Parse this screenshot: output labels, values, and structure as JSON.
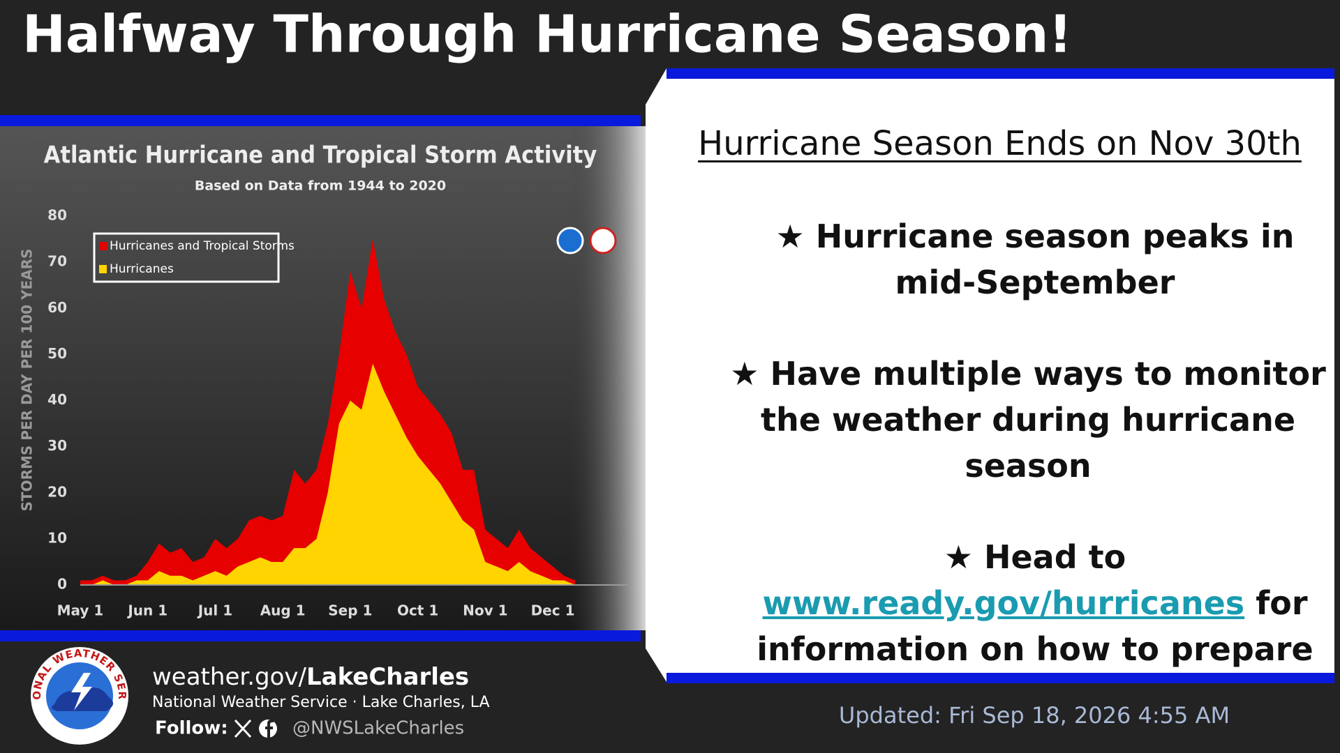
{
  "header": {
    "title": "Halfway Through Hurricane Season!"
  },
  "chart_data": {
    "type": "area",
    "title": "Atlantic Hurricane and Tropical Storm Activity",
    "subtitle": "Based on Data from 1944 to 2020",
    "y_label": "STORMS PER DAY PER 100 YEARS",
    "categories": [
      "May 1",
      null,
      null,
      null,
      null,
      null,
      "Jun 1",
      null,
      null,
      null,
      null,
      null,
      "Jul 1",
      null,
      null,
      null,
      null,
      null,
      "Aug 1",
      null,
      null,
      null,
      null,
      null,
      "Sep 1",
      null,
      null,
      null,
      null,
      null,
      "Oct 1",
      null,
      null,
      null,
      null,
      null,
      "Nov 1",
      null,
      null,
      null,
      null,
      null,
      "Dec 1",
      null,
      null
    ],
    "series": [
      {
        "name": "Hurricanes and Tropical Storms",
        "color": "#e60000",
        "values": [
          1,
          1,
          2,
          1,
          1,
          2,
          5,
          9,
          7,
          8,
          5,
          6,
          10,
          8,
          10,
          14,
          15,
          14,
          15,
          25,
          22,
          25,
          35,
          50,
          68,
          60,
          75,
          62,
          55,
          50,
          43,
          40,
          37,
          33,
          25,
          25,
          12,
          10,
          8,
          12,
          8,
          6,
          4,
          2,
          1
        ]
      },
      {
        "name": "Hurricanes",
        "color": "#ffd400",
        "values": [
          0,
          0,
          1,
          0,
          0,
          1,
          1,
          3,
          2,
          2,
          1,
          2,
          3,
          2,
          4,
          5,
          6,
          5,
          5,
          8,
          8,
          10,
          20,
          35,
          40,
          38,
          48,
          42,
          37,
          32,
          28,
          25,
          22,
          18,
          14,
          12,
          5,
          4,
          3,
          5,
          3,
          2,
          1,
          1,
          0
        ]
      }
    ],
    "ylim": [
      0,
      80
    ],
    "yticks": [
      0,
      10,
      20,
      30,
      40,
      50,
      60,
      70,
      80
    ],
    "grid": false,
    "legend": "upper left"
  },
  "panel": {
    "heading": "Hurricane Season Ends on Nov 30th",
    "bullets": [
      "★ Hurricane season peaks in mid-September",
      "★ Have multiple ways to monitor the weather during hurricane season"
    ],
    "last_bullet": {
      "before": "★ Head to",
      "link": "www.ready.gov/hurricanes",
      "after": "for information on how to prepare"
    }
  },
  "footer": {
    "logo_text": "NATIONAL WEATHER SERVICE",
    "site_plain": "weather.gov/",
    "site_bold": "LakeCharles",
    "office": "National Weather Service · Lake Charles, LA",
    "follow": "Follow:",
    "handle": "@NWSLakeCharles",
    "updated": "Updated: Fri Sep 18, 2026 4:55 AM"
  }
}
